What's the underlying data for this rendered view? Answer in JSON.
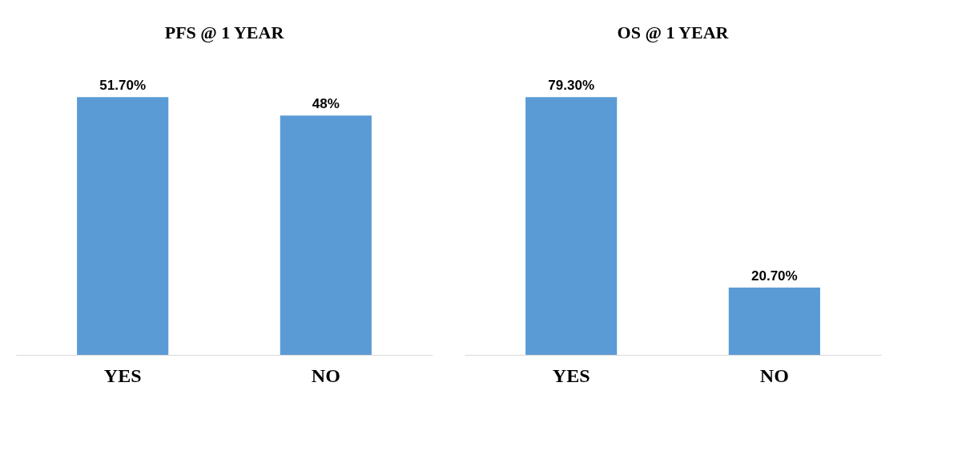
{
  "chart_data": [
    {
      "type": "bar",
      "title": "PFS @ 1 YEAR",
      "categories": [
        "YES",
        "NO"
      ],
      "values": [
        51.7,
        48
      ],
      "value_labels": [
        "51.70%",
        "48%"
      ],
      "color": "#5b9bd5",
      "grid": false,
      "legend": false
    },
    {
      "type": "bar",
      "title": "OS @ 1 YEAR",
      "categories": [
        "YES",
        "NO"
      ],
      "values": [
        79.3,
        20.7
      ],
      "value_labels": [
        "79.30%",
        "20.70%"
      ],
      "color": "#5b9bd5",
      "grid": false,
      "legend": false
    }
  ]
}
